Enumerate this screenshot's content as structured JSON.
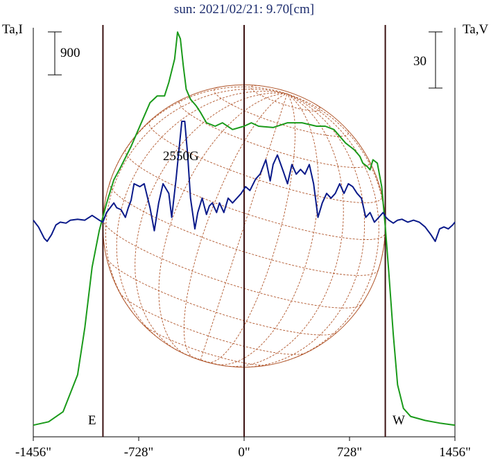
{
  "chart_data": {
    "type": "line",
    "title": "sun: 2021/02/21: 9.70[cm]",
    "left_axis_label": "Ta,I",
    "right_axis_label": "Ta,V",
    "scale_bar_left": "900",
    "scale_bar_right": "30",
    "annotation": "2550G",
    "limb_east_label": "E",
    "limb_west_label": "W",
    "x_ticks": [
      "-1456\"",
      "-728\"",
      "0\"",
      "728\"",
      "1456\""
    ],
    "x_tick_values": [
      -1456,
      -728,
      0,
      728,
      1456
    ],
    "xlim": [
      -1456,
      1456
    ],
    "limb_positions": [
      -975,
      975
    ],
    "disk_radius": 975,
    "colors": {
      "intensity": "#1a9a1a",
      "polarization": "#0a1a8a",
      "disk": "#b0552a",
      "vertical_lines": "#3a1010",
      "title": "#1a2a6c"
    },
    "series": [
      {
        "name": "Ta,I",
        "ylim": [
          0,
          5800
        ],
        "x": [
          -1456,
          -1350,
          -1250,
          -1150,
          -1100,
          -1050,
          -1000,
          -975,
          -950,
          -900,
          -850,
          -780,
          -700,
          -650,
          -600,
          -550,
          -520,
          -480,
          -460,
          -440,
          -420,
          -400,
          -370,
          -330,
          -300,
          -260,
          -200,
          -150,
          -80,
          0,
          50,
          100,
          200,
          300,
          400,
          500,
          560,
          620,
          700,
          760,
          800,
          820,
          850,
          870,
          890,
          920,
          950,
          975,
          1000,
          1030,
          1060,
          1100,
          1150,
          1250,
          1350,
          1456
        ],
        "y": [
          50,
          100,
          250,
          800,
          1500,
          2400,
          2950,
          3150,
          3350,
          3700,
          3900,
          4200,
          4600,
          4850,
          4950,
          4950,
          5150,
          5500,
          5900,
          5800,
          5400,
          5050,
          4900,
          4800,
          4700,
          4550,
          4500,
          4550,
          4450,
          4500,
          4550,
          4500,
          4480,
          4550,
          4550,
          4500,
          4500,
          4450,
          4250,
          4150,
          4050,
          3950,
          3900,
          3850,
          4000,
          3950,
          3600,
          3000,
          2300,
          1400,
          650,
          300,
          180,
          120,
          80,
          50
        ]
      },
      {
        "name": "Ta,V",
        "ylim": [
          -220,
          186
        ],
        "x": [
          -1456,
          -1420,
          -1380,
          -1360,
          -1330,
          -1300,
          -1270,
          -1230,
          -1200,
          -1150,
          -1100,
          -1050,
          -1000,
          -975,
          -950,
          -900,
          -880,
          -850,
          -820,
          -800,
          -780,
          -760,
          -720,
          -690,
          -650,
          -620,
          -590,
          -560,
          -520,
          -500,
          -470,
          -450,
          -430,
          -410,
          -390,
          -370,
          -340,
          -320,
          -290,
          -260,
          -240,
          -220,
          -190,
          -170,
          -140,
          -110,
          -80,
          -50,
          -20,
          10,
          40,
          80,
          110,
          150,
          180,
          200,
          230,
          270,
          300,
          330,
          360,
          390,
          420,
          450,
          480,
          510,
          540,
          570,
          600,
          630,
          660,
          690,
          720,
          750,
          780,
          810,
          840,
          870,
          900,
          930,
          960,
          980,
          1000,
          1030,
          1060,
          1090,
          1130,
          1170,
          1210,
          1250,
          1290,
          1320,
          1350,
          1380,
          1410,
          1440,
          1456
        ],
        "y": [
          -3,
          -10,
          -22,
          -25,
          -18,
          -8,
          -5,
          -6,
          -3,
          -2,
          -3,
          2,
          -3,
          -5,
          5,
          15,
          10,
          8,
          0,
          10,
          18,
          35,
          32,
          35,
          10,
          -14,
          15,
          35,
          25,
          0,
          40,
          70,
          100,
          100,
          65,
          20,
          -12,
          5,
          20,
          3,
          12,
          15,
          5,
          15,
          5,
          20,
          15,
          20,
          25,
          32,
          28,
          40,
          45,
          60,
          38,
          55,
          65,
          48,
          35,
          55,
          45,
          50,
          45,
          55,
          35,
          0,
          15,
          25,
          20,
          25,
          35,
          25,
          35,
          32,
          25,
          20,
          0,
          5,
          -5,
          0,
          5,
          0,
          -3,
          -6,
          -3,
          -2,
          -5,
          -3,
          -5,
          -10,
          -18,
          -25,
          -12,
          -10,
          -12,
          -8,
          -5
        ]
      }
    ]
  }
}
